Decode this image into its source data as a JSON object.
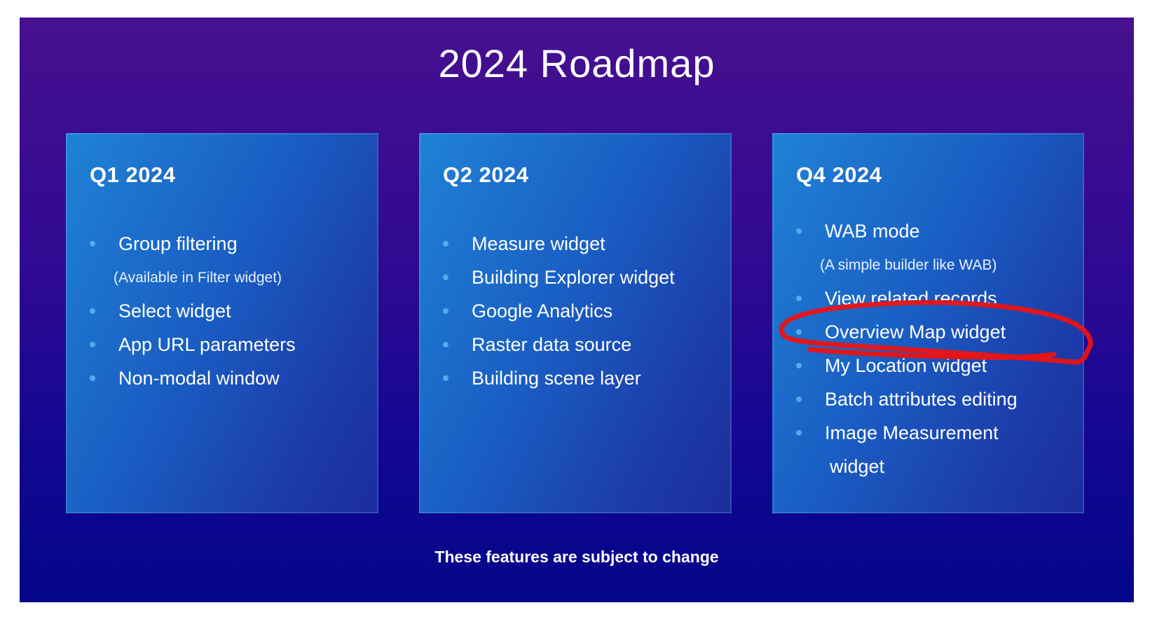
{
  "theme": {
    "slide_top": "#47108f",
    "slide_mid": "#2e0993",
    "slide_low": "#150792",
    "slide_bottom": "#03068a",
    "card_tl": "#1f82d6",
    "card_mid": "#1a5ec3",
    "card_low": "#1c3aa9",
    "card_br": "#1b2c9e",
    "bullet": "#55aae9",
    "note_text": "#e8f1fd"
  },
  "slide": {
    "title": "2024 Roadmap",
    "footer": "These features are subject to change",
    "columns": [
      {
        "id": "q1-2024",
        "heading": "Q1 2024",
        "items": [
          {
            "type": "bullet",
            "text": "Group filtering"
          },
          {
            "type": "note",
            "text": "(Available in Filter widget)"
          },
          {
            "type": "bullet",
            "text": "Select widget"
          },
          {
            "type": "bullet",
            "text": "App URL parameters"
          },
          {
            "type": "bullet",
            "text": "Non-modal window"
          }
        ]
      },
      {
        "id": "q2-2024",
        "heading": "Q2 2024",
        "items": [
          {
            "type": "bullet",
            "text": "Measure widget"
          },
          {
            "type": "bullet",
            "text": "Building Explorer widget"
          },
          {
            "type": "bullet",
            "text": "Google Analytics"
          },
          {
            "type": "bullet",
            "text": "Raster data source"
          },
          {
            "type": "bullet",
            "text": "Building scene layer"
          }
        ]
      },
      {
        "id": "q4-2024",
        "heading": "Q4 2024",
        "items": [
          {
            "type": "bullet",
            "text": "WAB mode"
          },
          {
            "type": "note",
            "text": "(A simple builder like WAB)"
          },
          {
            "type": "bullet",
            "text": "View related records"
          },
          {
            "type": "bullet",
            "text": "Overview Map widget",
            "highlighted": true
          },
          {
            "type": "bullet",
            "text": "My Location widget"
          },
          {
            "type": "bullet",
            "text": "Batch attributes editing"
          },
          {
            "type": "bullet",
            "text": "Image Measurement widget",
            "lines": [
              "Image Measurement",
              "widget"
            ]
          }
        ]
      }
    ]
  },
  "annotation": {
    "shape": "hand-drawn-circle",
    "target": "Overview Map widget",
    "color": "#e81414"
  }
}
